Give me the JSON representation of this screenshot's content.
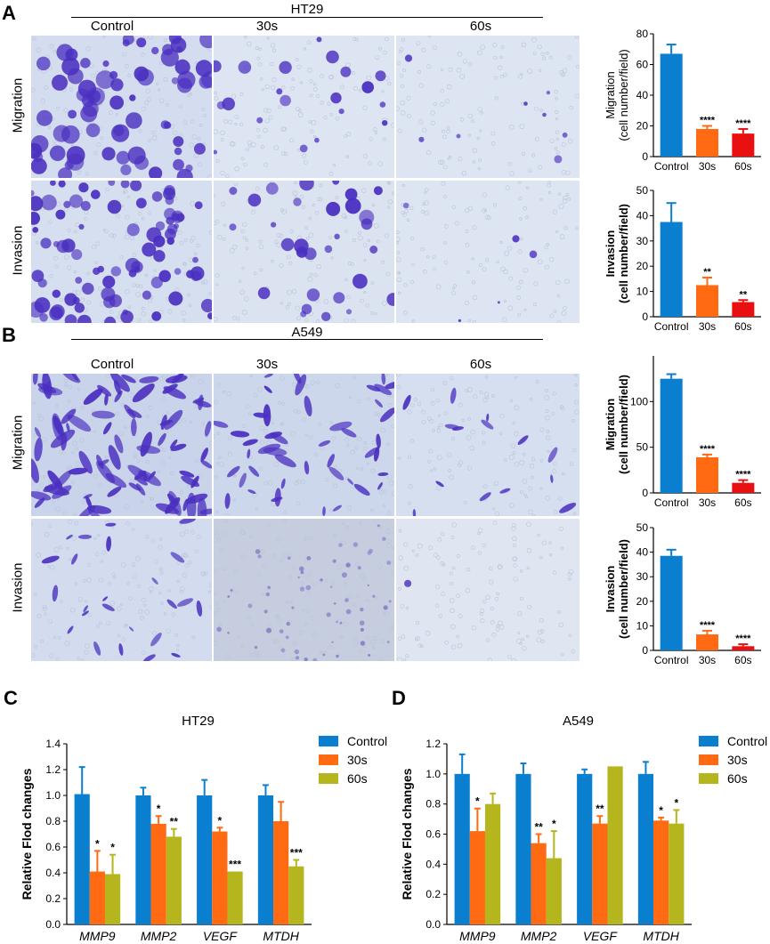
{
  "panels": {
    "A": {
      "letter": "A",
      "cell_line": "HT29",
      "columns": [
        "Control",
        "30s",
        "60s"
      ],
      "rows": [
        "Migration",
        "Invasion"
      ]
    },
    "B": {
      "letter": "B",
      "cell_line": "A549",
      "columns": [
        "Control",
        "30s",
        "60s"
      ],
      "rows": [
        "Migration",
        "Invasion"
      ]
    },
    "C": {
      "letter": "C",
      "title": "HT29"
    },
    "D": {
      "letter": "D",
      "title": "A549"
    }
  },
  "colors": {
    "control": "#0a7fd0",
    "s30": "#ff6a13",
    "s60": "#e81010",
    "s60_qpcr": "#b5b51e",
    "micro_bg_a": "#d9e2f2",
    "micro_bg_b": "#cfd9ec",
    "stain": "#4a2fc0"
  },
  "chart_data": [
    {
      "id": "A-migration",
      "type": "bar",
      "categories": [
        "Control",
        "30s",
        "60s"
      ],
      "values": [
        67,
        18,
        15
      ],
      "errors": [
        6,
        2,
        3
      ],
      "significance": [
        "",
        "****",
        "****"
      ],
      "ylabel": [
        "Migration",
        "(cell number/field)"
      ],
      "ylim": [
        0,
        80
      ],
      "yticks": [
        0,
        20,
        40,
        60,
        80
      ],
      "ylabel_bold": false
    },
    {
      "id": "A-invasion",
      "type": "bar",
      "categories": [
        "Control",
        "30s",
        "60s"
      ],
      "values": [
        37.5,
        12.5,
        5.8
      ],
      "errors": [
        7.5,
        3,
        0.8
      ],
      "significance": [
        "",
        "**",
        "**"
      ],
      "ylabel": [
        "Invasion",
        "(cell number/field)"
      ],
      "ylim": [
        0,
        50
      ],
      "yticks": [
        0,
        10,
        20,
        30,
        40,
        50
      ],
      "ylabel_bold": true
    },
    {
      "id": "B-migration",
      "type": "bar",
      "categories": [
        "Control",
        "30s",
        "60s"
      ],
      "values": [
        125,
        39,
        11
      ],
      "errors": [
        5,
        3,
        3
      ],
      "significance": [
        "",
        "****",
        "****"
      ],
      "ylabel": [
        "Migration",
        "(cell number/field)"
      ],
      "ylim": [
        0,
        150
      ],
      "yticks": [
        0,
        50,
        100
      ],
      "ylabel_bold": true
    },
    {
      "id": "B-invasion",
      "type": "bar",
      "categories": [
        "Control",
        "30s",
        "60s"
      ],
      "values": [
        38.5,
        6.5,
        1.7
      ],
      "errors": [
        2.5,
        1.5,
        0.8
      ],
      "significance": [
        "",
        "****",
        "****"
      ],
      "ylabel": [
        "Invasion",
        "(cell number/field)"
      ],
      "ylim": [
        0,
        50
      ],
      "yticks": [
        0,
        10,
        20,
        30,
        40,
        50
      ],
      "ylabel_bold": true
    },
    {
      "id": "C",
      "type": "bar",
      "title": "HT29",
      "categories": [
        "MMP9",
        "MMP2",
        "VEGF",
        "MTDH"
      ],
      "series": [
        {
          "name": "Control",
          "values": [
            1.01,
            1.0,
            1.0,
            1.0
          ],
          "errors": [
            0.21,
            0.06,
            0.12,
            0.08
          ],
          "significance": [
            "",
            "",
            "",
            ""
          ]
        },
        {
          "name": "30s",
          "values": [
            0.41,
            0.78,
            0.72,
            0.8
          ],
          "errors": [
            0.16,
            0.06,
            0.03,
            0.15
          ],
          "significance": [
            "*",
            "*",
            "*",
            ""
          ]
        },
        {
          "name": "60s",
          "values": [
            0.39,
            0.68,
            0.41,
            0.45
          ],
          "errors": [
            0.15,
            0.06,
            0.0,
            0.05
          ],
          "significance": [
            "*",
            "**",
            "***",
            "***"
          ]
        }
      ],
      "ylabel": "Relative Flod changes",
      "ylim": [
        0,
        1.4
      ],
      "yticks": [
        0.0,
        0.2,
        0.4,
        0.6,
        0.8,
        1.0,
        1.2,
        1.4
      ]
    },
    {
      "id": "D",
      "type": "bar",
      "title": "A549",
      "categories": [
        "MMP9",
        "MMP2",
        "VEGF",
        "MTDH"
      ],
      "series": [
        {
          "name": "Control",
          "values": [
            1.0,
            1.0,
            1.0,
            1.0
          ],
          "errors": [
            0.13,
            0.07,
            0.03,
            0.08
          ],
          "significance": [
            "",
            "",
            "",
            ""
          ]
        },
        {
          "name": "30s",
          "values": [
            0.62,
            0.54,
            0.67,
            0.69
          ],
          "errors": [
            0.15,
            0.06,
            0.05,
            0.02
          ],
          "significance": [
            "*",
            "**",
            "**",
            "*"
          ]
        },
        {
          "name": "60s",
          "values": [
            0.8,
            0.44,
            1.05,
            0.67
          ],
          "errors": [
            0.07,
            0.18,
            0.0,
            0.09
          ],
          "significance": [
            "",
            "*",
            "",
            "*"
          ]
        }
      ],
      "ylabel": "Relative Flod changes",
      "ylim": [
        0,
        1.2
      ],
      "yticks": [
        0.0,
        0.2,
        0.4,
        0.6,
        0.8,
        1.0,
        1.2
      ]
    }
  ]
}
